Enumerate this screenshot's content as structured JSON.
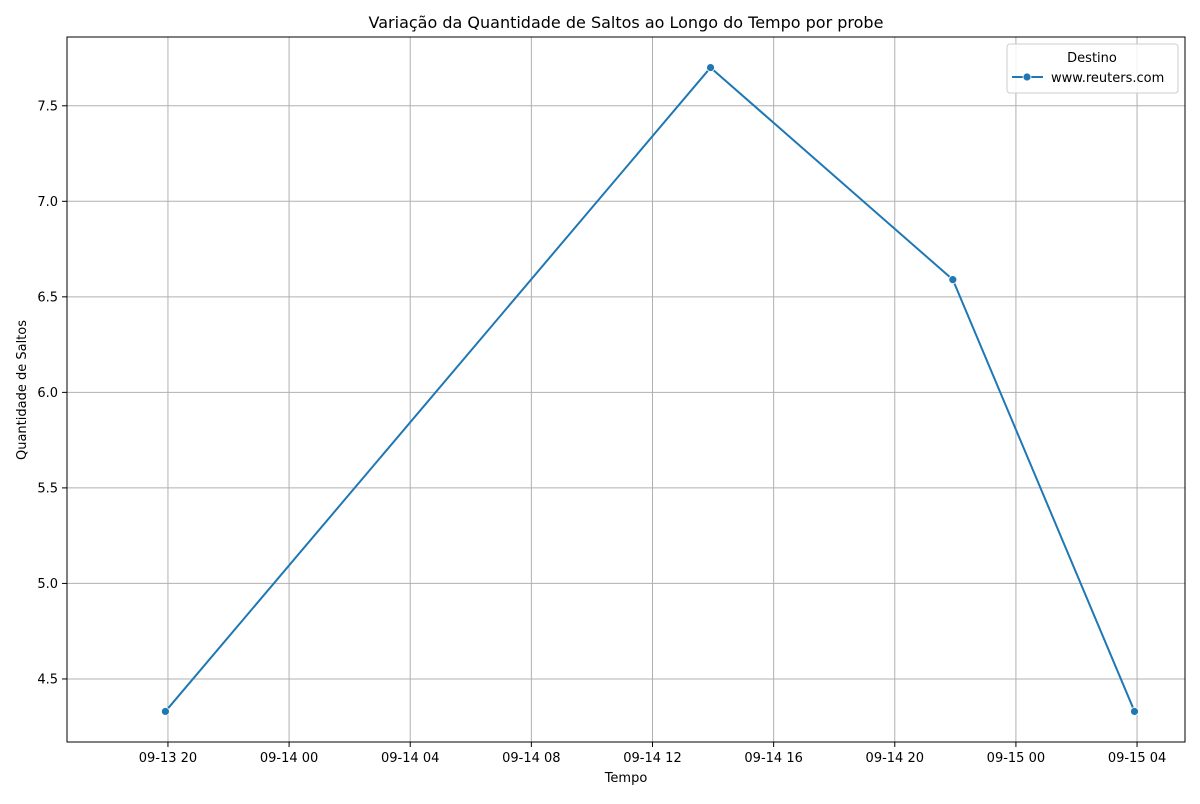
{
  "chart_data": {
    "type": "line",
    "title": "Variação da Quantidade de Saltos ao Longo do Tempo por probe",
    "xlabel": "Tempo",
    "ylabel": "Quantidade de Saltos",
    "x_ticks": [
      "09-13 20",
      "09-14 00",
      "09-14 04",
      "09-14 08",
      "09-14 12",
      "09-14 16",
      "09-14 20",
      "09-15 00",
      "09-15 04"
    ],
    "y_ticks": [
      "4.5",
      "5.0",
      "5.5",
      "6.0",
      "6.5",
      "7.0",
      "7.5"
    ],
    "xlim": [
      "09-13 16:40",
      "09-15 05:35"
    ],
    "ylim": [
      4.17,
      7.86
    ],
    "grid": true,
    "legend": {
      "title": "Destino",
      "position": "top-right"
    },
    "series": [
      {
        "name": "www.reuters.com",
        "color": "#1f77b4",
        "marker": "circle",
        "x": [
          "09-13 19:55",
          "09-14 13:55",
          "09-14 21:55",
          "09-15 03:55"
        ],
        "values": [
          4.33,
          7.7,
          6.59,
          4.33
        ]
      }
    ]
  }
}
